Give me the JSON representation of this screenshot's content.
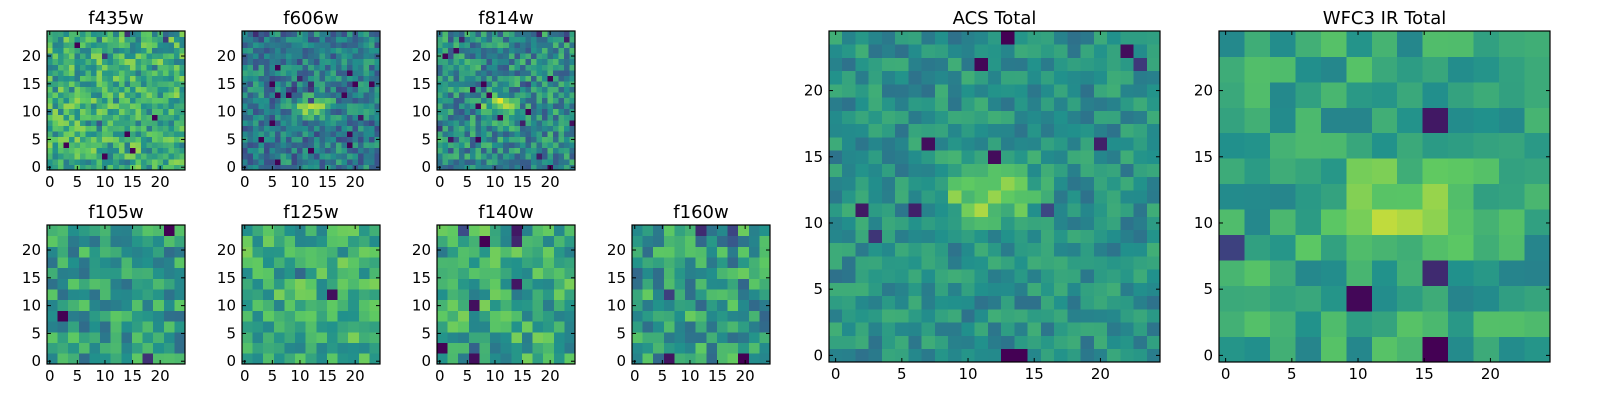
{
  "colormap": [
    "#440154",
    "#3b528b",
    "#21918c",
    "#5ec962",
    "#fde725"
  ],
  "axes_frame_color": "#000000",
  "chart_data": [
    {
      "type": "heatmap",
      "title": "f435w",
      "nx": 25,
      "ny": 25,
      "xlim": [
        -0.5,
        24.5
      ],
      "ylim": [
        -0.5,
        24.5
      ],
      "xticks": [
        0,
        5,
        10,
        15,
        20
      ],
      "yticks": [
        0,
        5,
        10,
        15,
        20
      ],
      "colormap": "viridis",
      "seed": 11,
      "level": 0.62,
      "spread": 0.22,
      "blob": null,
      "note_values": "pixel-level cell values not legible; field is generated procedurally with given level/spread"
    },
    {
      "type": "heatmap",
      "title": "f606w",
      "nx": 25,
      "ny": 25,
      "xlim": [
        -0.5,
        24.5
      ],
      "ylim": [
        -0.5,
        24.5
      ],
      "xticks": [
        0,
        5,
        10,
        15,
        20
      ],
      "yticks": [
        0,
        5,
        10,
        15,
        20
      ],
      "colormap": "viridis",
      "seed": 23,
      "level": 0.42,
      "spread": 0.2,
      "blob": {
        "x": 12,
        "y": 11,
        "rx": 3.5,
        "ry": 1.5,
        "amp": 0.45
      }
    },
    {
      "type": "heatmap",
      "title": "f814w",
      "nx": 25,
      "ny": 25,
      "xlim": [
        -0.5,
        24.5
      ],
      "ylim": [
        -0.5,
        24.5
      ],
      "xticks": [
        0,
        5,
        10,
        15,
        20
      ],
      "yticks": [
        0,
        5,
        10,
        15,
        20
      ],
      "colormap": "viridis",
      "seed": 37,
      "level": 0.48,
      "spread": 0.22,
      "blob": {
        "x": 11,
        "y": 11,
        "rx": 3,
        "ry": 2,
        "amp": 0.35
      }
    },
    {
      "type": "heatmap",
      "title": "f105w",
      "nx": 13,
      "ny": 13,
      "xlim": [
        -0.5,
        24.5
      ],
      "ylim": [
        -0.5,
        24.5
      ],
      "xticks": [
        0,
        5,
        10,
        15,
        20
      ],
      "yticks": [
        0,
        5,
        10,
        15,
        20
      ],
      "colormap": "viridis",
      "seed": 41,
      "level": 0.55,
      "spread": 0.2,
      "blob": null
    },
    {
      "type": "heatmap",
      "title": "f125w",
      "nx": 13,
      "ny": 13,
      "xlim": [
        -0.5,
        24.5
      ],
      "ylim": [
        -0.5,
        24.5
      ],
      "xticks": [
        0,
        5,
        10,
        15,
        20
      ],
      "yticks": [
        0,
        5,
        10,
        15,
        20
      ],
      "colormap": "viridis",
      "seed": 53,
      "level": 0.62,
      "spread": 0.18,
      "blob": null
    },
    {
      "type": "heatmap",
      "title": "f140w",
      "nx": 13,
      "ny": 13,
      "xlim": [
        -0.5,
        24.5
      ],
      "ylim": [
        -0.5,
        24.5
      ],
      "xticks": [
        0,
        5,
        10,
        15,
        20
      ],
      "yticks": [
        0,
        5,
        10,
        15,
        20
      ],
      "colormap": "viridis",
      "seed": 67,
      "level": 0.6,
      "spread": 0.2,
      "blob": null
    },
    {
      "type": "heatmap",
      "title": "f160w",
      "nx": 13,
      "ny": 13,
      "xlim": [
        -0.5,
        24.5
      ],
      "ylim": [
        -0.5,
        24.5
      ],
      "xticks": [
        0,
        5,
        10,
        15,
        20
      ],
      "yticks": [
        0,
        5,
        10,
        15,
        20
      ],
      "colormap": "viridis",
      "seed": 79,
      "level": 0.55,
      "spread": 0.22,
      "blob": null
    },
    {
      "type": "heatmap",
      "title": "ACS Total",
      "nx": 25,
      "ny": 25,
      "xlim": [
        -0.5,
        24.5
      ],
      "ylim": [
        -0.5,
        24.5
      ],
      "xticks": [
        0,
        5,
        10,
        15,
        20
      ],
      "yticks": [
        0,
        5,
        10,
        15,
        20
      ],
      "colormap": "viridis",
      "seed": 97,
      "level": 0.5,
      "spread": 0.13,
      "blob": {
        "x": 11.5,
        "y": 12,
        "rx": 3.5,
        "ry": 2,
        "amp": 0.35
      }
    },
    {
      "type": "heatmap",
      "title": "WFC3 IR Total",
      "nx": 13,
      "ny": 13,
      "xlim": [
        -0.5,
        24.5
      ],
      "ylim": [
        -0.5,
        24.5
      ],
      "xticks": [
        0,
        5,
        10,
        15,
        20
      ],
      "yticks": [
        0,
        5,
        10,
        15,
        20
      ],
      "colormap": "viridis",
      "seed": 113,
      "level": 0.58,
      "spread": 0.14,
      "blob": {
        "x": 13,
        "y": 11,
        "rx": 5,
        "ry": 3,
        "amp": 0.3
      }
    }
  ]
}
